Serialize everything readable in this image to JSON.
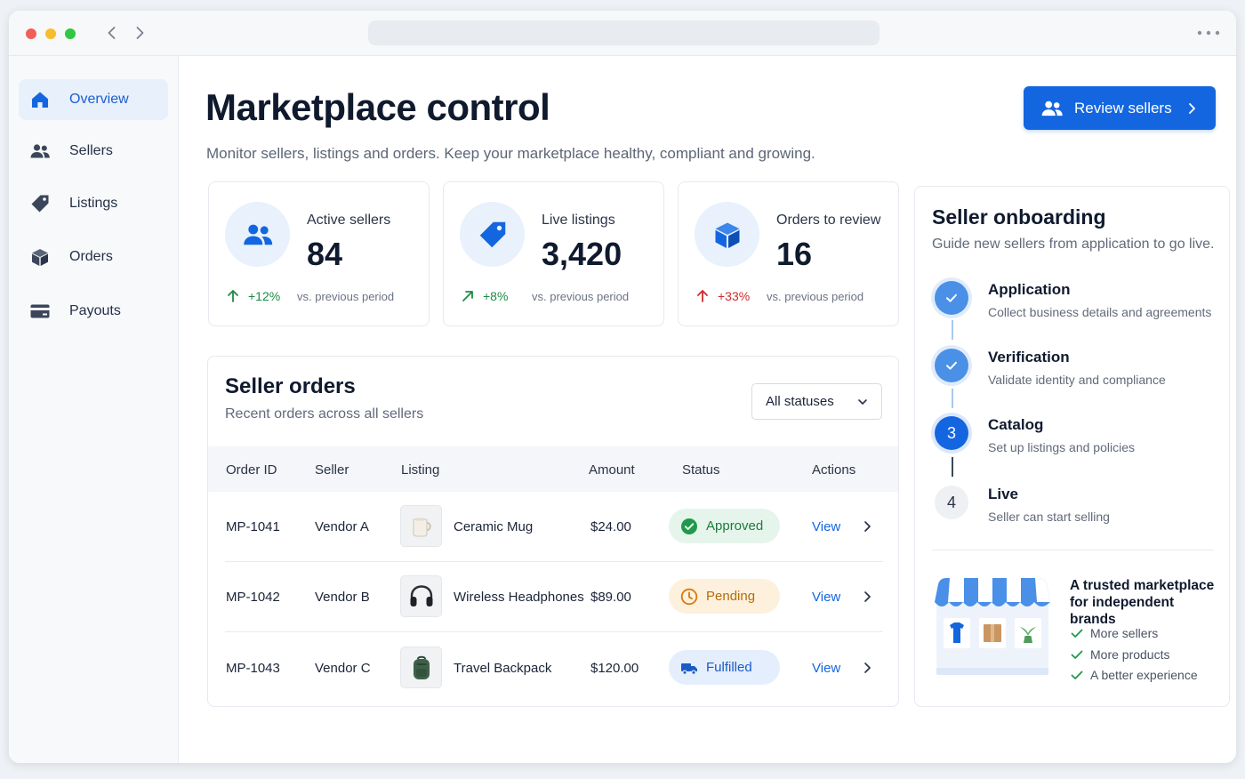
{
  "window": {
    "back_icon": "chevron-left-icon",
    "forward_icon": "chevron-right-icon",
    "menu_icon": "more-horizontal-icon"
  },
  "sidebar": {
    "items": [
      {
        "label": "Overview",
        "icon": "home-icon",
        "active": true
      },
      {
        "label": "Sellers",
        "icon": "users-icon",
        "active": false
      },
      {
        "label": "Listings",
        "icon": "tag-icon",
        "active": false
      },
      {
        "label": "Orders",
        "icon": "box-icon",
        "active": false
      },
      {
        "label": "Payouts",
        "icon": "credit-card-icon",
        "active": false
      }
    ]
  },
  "header": {
    "title": "Marketplace control",
    "subtitle": "Monitor sellers, listings and orders. Keep your marketplace healthy, compliant and growing.",
    "primary_button": "Review sellers"
  },
  "stats": [
    {
      "label": "Active sellers",
      "value": "84",
      "delta": "+12%",
      "trend": "up",
      "color": "#1e8a45",
      "comparison": "vs. previous period",
      "icon": "users-icon"
    },
    {
      "label": "Live listings",
      "value": "3,420",
      "delta": "+8%",
      "trend": "up-right",
      "color": "#1e8a45",
      "comparison": "vs. previous period",
      "icon": "tag-icon"
    },
    {
      "label": "Orders to review",
      "value": "16",
      "delta": "+33%",
      "trend": "up",
      "color": "#d12a2a",
      "comparison": "vs. previous period",
      "icon": "box-icon"
    }
  ],
  "orders": {
    "title": "Seller orders",
    "subtitle": "Recent orders across all sellers",
    "filter": {
      "selected": "All statuses"
    },
    "columns": [
      "Order ID",
      "Seller",
      "Listing",
      "Amount",
      "Status",
      "Actions"
    ],
    "rows": [
      {
        "id": "MP-1041",
        "seller": "Vendor A",
        "listing": "Ceramic Mug",
        "thumb": "mug-icon",
        "amount": "$24.00",
        "status": "Approved",
        "status_icon": "check-circle-icon",
        "action": "View"
      },
      {
        "id": "MP-1042",
        "seller": "Vendor B",
        "listing": "Wireless Headphones",
        "thumb": "headphones-icon",
        "amount": "$89.00",
        "status": "Pending",
        "status_icon": "clock-icon",
        "action": "View"
      },
      {
        "id": "MP-1043",
        "seller": "Vendor C",
        "listing": "Travel Backpack",
        "thumb": "backpack-icon",
        "amount": "$120.00",
        "status": "Fulfilled",
        "status_icon": "truck-icon",
        "action": "View"
      }
    ]
  },
  "onboarding": {
    "title": "Seller onboarding",
    "subtitle": "Guide new sellers from application to go live.",
    "steps": [
      {
        "marker": "",
        "title": "Application",
        "description": "Collect business details and agreements",
        "state": "done"
      },
      {
        "marker": "",
        "title": "Verification",
        "description": "Validate identity and compliance",
        "state": "done"
      },
      {
        "marker": "3",
        "title": "Catalog",
        "description": "Set up listings and policies",
        "state": "current"
      },
      {
        "marker": "4",
        "title": "Live",
        "description": "Seller can start selling",
        "state": "todo"
      }
    ],
    "promo": {
      "title": "A trusted marketplace for independent brands",
      "items": [
        "More sellers",
        "More products",
        "A better experience"
      ]
    }
  },
  "colors": {
    "accent": "#1466e0",
    "approved": "#1e7a3f",
    "pending": "#b86a0b",
    "fulfilled": "#1a5bc6"
  }
}
